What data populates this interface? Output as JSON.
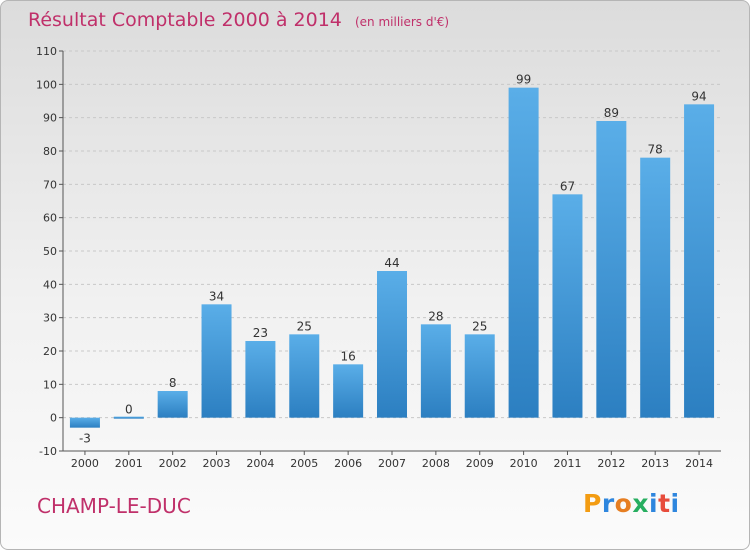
{
  "header": {
    "title": "Résultat Comptable 2000 à 2014",
    "subtitle": "(en milliers d'€)"
  },
  "footer": {
    "commune": "CHAMP-LE-DUC",
    "logo_text": "Proxiti"
  },
  "colors": {
    "title": "#c0306a",
    "bar_top": "#5aaee8",
    "bar_bottom": "#2c7fc1"
  },
  "chart_data": {
    "type": "bar",
    "title": "Résultat Comptable 2000 à 2014",
    "subtitle": "(en milliers d'€)",
    "categories": [
      "2000",
      "2001",
      "2002",
      "2003",
      "2004",
      "2005",
      "2006",
      "2007",
      "2008",
      "2009",
      "2010",
      "2011",
      "2012",
      "2013",
      "2014"
    ],
    "values": [
      -3,
      0,
      8,
      34,
      23,
      25,
      16,
      44,
      28,
      25,
      99,
      67,
      89,
      78,
      94
    ],
    "data_labels": [
      "-3",
      "0",
      "8",
      "34",
      "23",
      "25",
      "16",
      "44",
      "28",
      "25",
      "99",
      "67",
      "89",
      "78",
      "94"
    ],
    "ylim": [
      -10,
      110
    ],
    "yticks": [
      -10,
      0,
      10,
      20,
      30,
      40,
      50,
      60,
      70,
      80,
      90,
      100,
      110
    ],
    "ytick_labels": [
      "-10",
      "0",
      "10",
      "20",
      "30",
      "40",
      "50",
      "60",
      "70",
      "80",
      "90",
      "100",
      "110"
    ],
    "grid": "horizontal dashed",
    "xlabel": "",
    "ylabel": ""
  }
}
